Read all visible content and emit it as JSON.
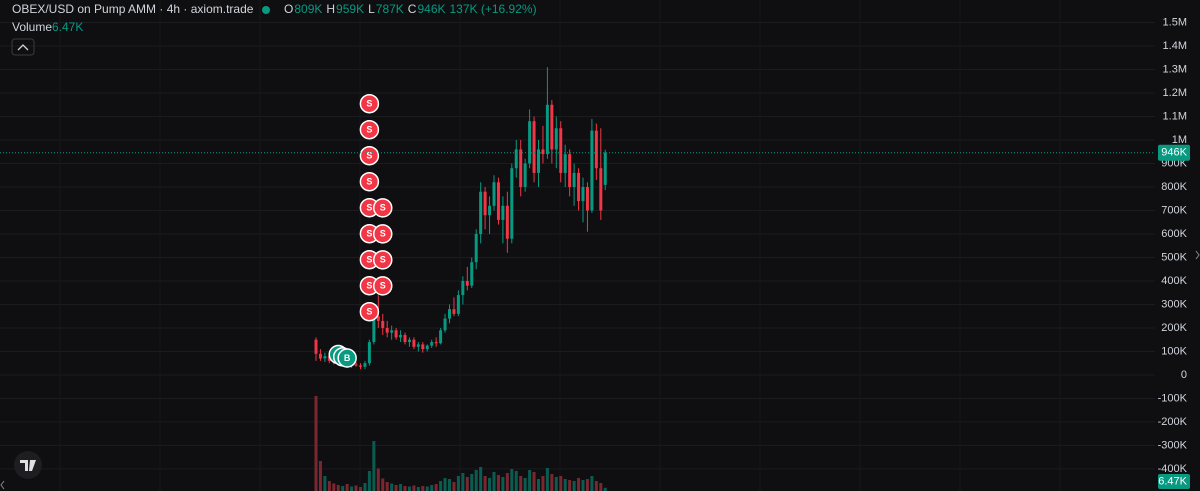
{
  "header": {
    "title": "OBEX/USD on Pump AMM · 4h · axiom.trade",
    "ohlc": [
      {
        "letter": "O",
        "value": "809K"
      },
      {
        "letter": "H",
        "value": "959K"
      },
      {
        "letter": "L",
        "value": "787K"
      },
      {
        "letter": "C",
        "value": "946K"
      }
    ],
    "change": "137K (+16.92%)",
    "volume_label": "Volume",
    "volume_value": "6.47K"
  },
  "chart_data": {
    "type": "candlestick",
    "up_color": "#089981",
    "down_color": "#f23645",
    "grid": true,
    "ylim": [
      -494000,
      1596000
    ],
    "yticks": [
      {
        "value": -400000,
        "label": "-400K"
      },
      {
        "value": -300000,
        "label": "-300K"
      },
      {
        "value": -200000,
        "label": "-200K"
      },
      {
        "value": -100000,
        "label": "-100K"
      },
      0,
      {
        "value": 100000,
        "label": "100K"
      },
      {
        "value": 200000,
        "label": "200K"
      },
      {
        "value": 300000,
        "label": "300K"
      },
      {
        "value": 400000,
        "label": "400K"
      },
      {
        "value": 500000,
        "label": "500K"
      },
      {
        "value": 600000,
        "label": "600K"
      },
      {
        "value": 700000,
        "label": "700K"
      },
      {
        "value": 800000,
        "label": "800K"
      },
      {
        "value": 900000,
        "label": "900K"
      },
      {
        "value": 1000000,
        "label": "1M"
      },
      {
        "value": 1100000,
        "label": "1.1M"
      },
      {
        "value": 1200000,
        "label": "1.2M"
      },
      {
        "value": 1300000,
        "label": "1.3M"
      },
      {
        "value": 1400000,
        "label": "1.4M"
      },
      {
        "value": 1500000,
        "label": "1.5M"
      }
    ],
    "open": [
      150000,
      90000,
      70000,
      80000,
      60000,
      55000,
      45000,
      50000,
      40000,
      45000,
      40000,
      35000,
      50000,
      140000,
      250000,
      230000,
      200000,
      180000,
      190000,
      160000,
      170000,
      140000,
      150000,
      120000,
      130000,
      110000,
      125000,
      140000,
      135000,
      190000,
      240000,
      280000,
      260000,
      340000,
      400000,
      380000,
      480000,
      600000,
      780000,
      680000,
      720000,
      820000,
      660000,
      720000,
      580000,
      880000,
      960000,
      800000,
      900000,
      1080000,
      860000,
      960000,
      940000,
      1150000,
      960000,
      1050000,
      860000,
      940000,
      800000,
      860000,
      740000,
      800000,
      700000,
      1040000,
      880000,
      809000
    ],
    "high": [
      160000,
      110000,
      95000,
      85000,
      75000,
      70000,
      60000,
      55000,
      50000,
      55000,
      50000,
      60000,
      150000,
      280000,
      340000,
      260000,
      230000,
      210000,
      200000,
      190000,
      180000,
      160000,
      160000,
      140000,
      140000,
      130000,
      150000,
      160000,
      200000,
      260000,
      300000,
      330000,
      360000,
      420000,
      460000,
      500000,
      620000,
      820000,
      800000,
      760000,
      850000,
      840000,
      760000,
      780000,
      900000,
      1000000,
      1000000,
      920000,
      1130000,
      1100000,
      1000000,
      1060000,
      1310000,
      1170000,
      1100000,
      1080000,
      980000,
      960000,
      900000,
      880000,
      840000,
      820000,
      1090000,
      1070000,
      1050000,
      959000
    ],
    "low": [
      60000,
      60000,
      55000,
      50000,
      45000,
      40000,
      35000,
      30000,
      30000,
      35000,
      25000,
      25000,
      40000,
      130000,
      200000,
      170000,
      160000,
      150000,
      150000,
      140000,
      130000,
      120000,
      110000,
      100000,
      95000,
      100000,
      115000,
      120000,
      130000,
      180000,
      220000,
      250000,
      250000,
      300000,
      360000,
      370000,
      450000,
      560000,
      620000,
      600000,
      700000,
      640000,
      560000,
      520000,
      560000,
      840000,
      760000,
      780000,
      880000,
      820000,
      800000,
      900000,
      920000,
      900000,
      880000,
      820000,
      800000,
      760000,
      720000,
      700000,
      650000,
      610000,
      690000,
      830000,
      660000,
      787000
    ],
    "close": [
      90000,
      70000,
      80000,
      60000,
      55000,
      45000,
      50000,
      40000,
      45000,
      40000,
      35000,
      50000,
      140000,
      250000,
      230000,
      200000,
      180000,
      190000,
      160000,
      170000,
      140000,
      150000,
      120000,
      130000,
      110000,
      125000,
      140000,
      135000,
      190000,
      240000,
      280000,
      260000,
      340000,
      400000,
      380000,
      480000,
      600000,
      780000,
      680000,
      720000,
      820000,
      660000,
      720000,
      580000,
      880000,
      960000,
      800000,
      900000,
      1080000,
      860000,
      960000,
      940000,
      1150000,
      960000,
      1050000,
      860000,
      940000,
      800000,
      860000,
      740000,
      800000,
      700000,
      1040000,
      880000,
      700000,
      946000
    ],
    "volume": [
      190000,
      60000,
      30000,
      20000,
      15000,
      12000,
      10000,
      14000,
      9000,
      11000,
      8000,
      16000,
      40000,
      100000,
      45000,
      25000,
      18000,
      15000,
      12000,
      14000,
      10000,
      9000,
      11000,
      8000,
      10000,
      9000,
      12000,
      14000,
      20000,
      26000,
      24000,
      18000,
      30000,
      36000,
      28000,
      34000,
      42000,
      48000,
      30000,
      26000,
      38000,
      32000,
      28000,
      36000,
      44000,
      40000,
      30000,
      26000,
      42000,
      38000,
      24000,
      30000,
      46000,
      34000,
      28000,
      30000,
      24000,
      22000,
      20000,
      26000,
      22000,
      24000,
      30000,
      20000,
      16000,
      6470
    ],
    "vlim": [
      0,
      200000
    ],
    "last_price": {
      "value": 946000,
      "label": "946K"
    },
    "last_volume_label": "6.47K",
    "markers": [
      {
        "label": "B",
        "index": 5
      },
      {
        "label": "B",
        "index": 6
      },
      {
        "label": "B",
        "index": 7
      },
      {
        "label": "S",
        "index": 12
      },
      {
        "label": "S",
        "index": 12
      },
      {
        "label": "S",
        "index": 12
      },
      {
        "label": "S",
        "index": 12
      },
      {
        "label": "S",
        "index": 12
      },
      {
        "label": "S",
        "index": 12
      },
      {
        "label": "S",
        "index": 12
      },
      {
        "label": "S",
        "index": 12
      },
      {
        "label": "S",
        "index": 12
      },
      {
        "label": "S",
        "index": 15
      },
      {
        "label": "S",
        "index": 15
      },
      {
        "label": "S",
        "index": 15
      },
      {
        "label": "S",
        "index": 15
      }
    ]
  }
}
